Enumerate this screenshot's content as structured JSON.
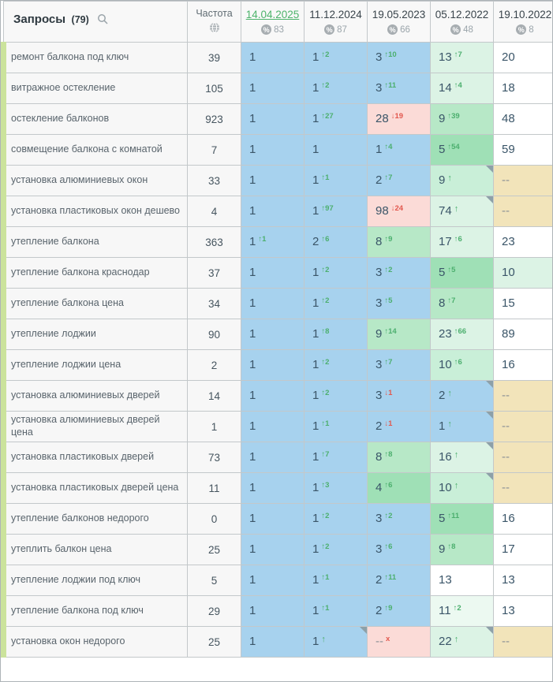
{
  "header": {
    "queries_label": "Запросы",
    "queries_count": "(79)",
    "frequency_label": "Частота",
    "columns": [
      {
        "date": "14.04.2025",
        "percent": "83",
        "active": true
      },
      {
        "date": "11.12.2024",
        "percent": "87",
        "active": false
      },
      {
        "date": "19.05.2023",
        "percent": "66",
        "active": false
      },
      {
        "date": "05.12.2022",
        "percent": "48",
        "active": false
      },
      {
        "date": "19.10.2022",
        "percent": "8",
        "active": false
      }
    ]
  },
  "icons": {
    "search": "magnifier",
    "frequency": "globe",
    "percent_badge": "percent-in-circle",
    "note_marker": "gray-corner-triangle"
  },
  "palette": {
    "blue": "#a7d2ee",
    "green1": "#9fe0b6",
    "green2": "#b7e8c7",
    "green3": "#c9efd8",
    "pale": "#dcf3e5",
    "verypale": "#ecf9f1",
    "pink": "#fbdbd7",
    "tan": "#f2e4ba",
    "white": "#ffffff",
    "up": "#4caf6e",
    "down": "#e2584e",
    "active_date": "#4db36b",
    "row_stripe": "#cbe39c"
  },
  "rows": [
    {
      "query": "ремонт балкона под ключ",
      "frequency": "39",
      "cells": [
        {
          "v": "1",
          "bg": "blue"
        },
        {
          "v": "1",
          "sup": "↑2",
          "supColor": "up",
          "bg": "blue"
        },
        {
          "v": "3",
          "sup": "↑10",
          "supColor": "up",
          "bg": "blue"
        },
        {
          "v": "13",
          "sup": "↑7",
          "supColor": "up",
          "bg": "pale"
        },
        {
          "v": "20",
          "bg": "white"
        }
      ]
    },
    {
      "query": "витражное остекление",
      "frequency": "105",
      "cells": [
        {
          "v": "1",
          "bg": "blue"
        },
        {
          "v": "1",
          "sup": "↑2",
          "supColor": "up",
          "bg": "blue"
        },
        {
          "v": "3",
          "sup": "↑11",
          "supColor": "up",
          "bg": "blue"
        },
        {
          "v": "14",
          "sup": "↑4",
          "supColor": "up",
          "bg": "pale"
        },
        {
          "v": "18",
          "bg": "white"
        }
      ]
    },
    {
      "query": "остекление балконов",
      "frequency": "923",
      "cells": [
        {
          "v": "1",
          "bg": "blue"
        },
        {
          "v": "1",
          "sup": "↑27",
          "supColor": "up",
          "bg": "blue"
        },
        {
          "v": "28",
          "sup": "↓19",
          "supColor": "down",
          "bg": "pink"
        },
        {
          "v": "9",
          "sup": "↑39",
          "supColor": "up",
          "bg": "green2"
        },
        {
          "v": "48",
          "bg": "white"
        }
      ]
    },
    {
      "query": "совмещение балкона с комнатой",
      "frequency": "7",
      "cells": [
        {
          "v": "1",
          "bg": "blue"
        },
        {
          "v": "1",
          "bg": "blue"
        },
        {
          "v": "1",
          "sup": "↑4",
          "supColor": "up",
          "bg": "blue"
        },
        {
          "v": "5",
          "sup": "↑54",
          "supColor": "up",
          "bg": "green1"
        },
        {
          "v": "59",
          "bg": "white"
        }
      ]
    },
    {
      "query": "установка алюминиевых окон",
      "frequency": "33",
      "cells": [
        {
          "v": "1",
          "bg": "blue"
        },
        {
          "v": "1",
          "sup": "↑1",
          "supColor": "up",
          "bg": "blue"
        },
        {
          "v": "2",
          "sup": "↑7",
          "supColor": "up",
          "bg": "blue"
        },
        {
          "v": "9",
          "sup": "↑",
          "supColor": "up",
          "bg": "green3",
          "corner": true
        },
        {
          "v": "--",
          "bg": "tan"
        }
      ]
    },
    {
      "query": "установка пластиковых окон дешево",
      "frequency": "4",
      "cells": [
        {
          "v": "1",
          "bg": "blue"
        },
        {
          "v": "1",
          "sup": "↑97",
          "supColor": "up",
          "bg": "blue"
        },
        {
          "v": "98",
          "sup": "↓24",
          "supColor": "down",
          "bg": "pink"
        },
        {
          "v": "74",
          "sup": "↑",
          "supColor": "up",
          "bg": "pale",
          "corner": true
        },
        {
          "v": "--",
          "bg": "tan"
        }
      ]
    },
    {
      "query": "утепление балкона",
      "frequency": "363",
      "cells": [
        {
          "v": "1",
          "sup": "↑1",
          "supColor": "up",
          "bg": "blue"
        },
        {
          "v": "2",
          "sup": "↑6",
          "supColor": "up",
          "bg": "blue"
        },
        {
          "v": "8",
          "sup": "↑9",
          "supColor": "up",
          "bg": "green2"
        },
        {
          "v": "17",
          "sup": "↑6",
          "supColor": "up",
          "bg": "pale"
        },
        {
          "v": "23",
          "bg": "white"
        }
      ]
    },
    {
      "query": "утепление балкона краснодар",
      "frequency": "37",
      "cells": [
        {
          "v": "1",
          "bg": "blue"
        },
        {
          "v": "1",
          "sup": "↑2",
          "supColor": "up",
          "bg": "blue"
        },
        {
          "v": "3",
          "sup": "↑2",
          "supColor": "up",
          "bg": "blue"
        },
        {
          "v": "5",
          "sup": "↑5",
          "supColor": "up",
          "bg": "green1"
        },
        {
          "v": "10",
          "bg": "pale"
        }
      ]
    },
    {
      "query": "утепление балкона цена",
      "frequency": "34",
      "cells": [
        {
          "v": "1",
          "bg": "blue"
        },
        {
          "v": "1",
          "sup": "↑2",
          "supColor": "up",
          "bg": "blue"
        },
        {
          "v": "3",
          "sup": "↑5",
          "supColor": "up",
          "bg": "blue"
        },
        {
          "v": "8",
          "sup": "↑7",
          "supColor": "up",
          "bg": "green2"
        },
        {
          "v": "15",
          "bg": "white"
        }
      ]
    },
    {
      "query": "утепление лоджии",
      "frequency": "90",
      "cells": [
        {
          "v": "1",
          "bg": "blue"
        },
        {
          "v": "1",
          "sup": "↑8",
          "supColor": "up",
          "bg": "blue"
        },
        {
          "v": "9",
          "sup": "↑14",
          "supColor": "up",
          "bg": "green2"
        },
        {
          "v": "23",
          "sup": "↑66",
          "supColor": "up",
          "bg": "pale"
        },
        {
          "v": "89",
          "bg": "white"
        }
      ]
    },
    {
      "query": "утепление лоджии цена",
      "frequency": "2",
      "cells": [
        {
          "v": "1",
          "bg": "blue"
        },
        {
          "v": "1",
          "sup": "↑2",
          "supColor": "up",
          "bg": "blue"
        },
        {
          "v": "3",
          "sup": "↑7",
          "supColor": "up",
          "bg": "blue"
        },
        {
          "v": "10",
          "sup": "↑6",
          "supColor": "up",
          "bg": "green3"
        },
        {
          "v": "16",
          "bg": "white"
        }
      ]
    },
    {
      "query": "установка алюминиевых дверей",
      "frequency": "14",
      "cells": [
        {
          "v": "1",
          "bg": "blue"
        },
        {
          "v": "1",
          "sup": "↑2",
          "supColor": "up",
          "bg": "blue"
        },
        {
          "v": "3",
          "sup": "↓1",
          "supColor": "down",
          "bg": "blue"
        },
        {
          "v": "2",
          "sup": "↑",
          "supColor": "up",
          "bg": "blue",
          "corner": true
        },
        {
          "v": "--",
          "bg": "tan"
        }
      ]
    },
    {
      "query": "установка алюминиевых дверей цена",
      "frequency": "1",
      "cells": [
        {
          "v": "1",
          "bg": "blue"
        },
        {
          "v": "1",
          "sup": "↑1",
          "supColor": "up",
          "bg": "blue"
        },
        {
          "v": "2",
          "sup": "↓1",
          "supColor": "down",
          "bg": "blue"
        },
        {
          "v": "1",
          "sup": "↑",
          "supColor": "up",
          "bg": "blue",
          "corner": true
        },
        {
          "v": "--",
          "bg": "tan"
        }
      ]
    },
    {
      "query": "установка пластиковых дверей",
      "frequency": "73",
      "cells": [
        {
          "v": "1",
          "bg": "blue"
        },
        {
          "v": "1",
          "sup": "↑7",
          "supColor": "up",
          "bg": "blue"
        },
        {
          "v": "8",
          "sup": "↑8",
          "supColor": "up",
          "bg": "green2"
        },
        {
          "v": "16",
          "sup": "↑",
          "supColor": "up",
          "bg": "pale",
          "corner": true
        },
        {
          "v": "--",
          "bg": "tan"
        }
      ]
    },
    {
      "query": "установка пластиковых дверей цена",
      "frequency": "11",
      "cells": [
        {
          "v": "1",
          "bg": "blue"
        },
        {
          "v": "1",
          "sup": "↑3",
          "supColor": "up",
          "bg": "blue"
        },
        {
          "v": "4",
          "sup": "↑6",
          "supColor": "up",
          "bg": "green1"
        },
        {
          "v": "10",
          "sup": "↑",
          "supColor": "up",
          "bg": "green3",
          "corner": true
        },
        {
          "v": "--",
          "bg": "tan"
        }
      ]
    },
    {
      "query": "утепление балконов недорого",
      "frequency": "0",
      "cells": [
        {
          "v": "1",
          "bg": "blue"
        },
        {
          "v": "1",
          "sup": "↑2",
          "supColor": "up",
          "bg": "blue"
        },
        {
          "v": "3",
          "sup": "↑2",
          "supColor": "up",
          "bg": "blue"
        },
        {
          "v": "5",
          "sup": "↑11",
          "supColor": "up",
          "bg": "green1"
        },
        {
          "v": "16",
          "bg": "white"
        }
      ]
    },
    {
      "query": "утеплить балкон цена",
      "frequency": "25",
      "cells": [
        {
          "v": "1",
          "bg": "blue"
        },
        {
          "v": "1",
          "sup": "↑2",
          "supColor": "up",
          "bg": "blue"
        },
        {
          "v": "3",
          "sup": "↑6",
          "supColor": "up",
          "bg": "blue"
        },
        {
          "v": "9",
          "sup": "↑8",
          "supColor": "up",
          "bg": "green2"
        },
        {
          "v": "17",
          "bg": "white"
        }
      ]
    },
    {
      "query": "утепление лоджии под ключ",
      "frequency": "5",
      "cells": [
        {
          "v": "1",
          "bg": "blue"
        },
        {
          "v": "1",
          "sup": "↑1",
          "supColor": "up",
          "bg": "blue"
        },
        {
          "v": "2",
          "sup": "↑11",
          "supColor": "up",
          "bg": "blue"
        },
        {
          "v": "13",
          "bg": "white"
        },
        {
          "v": "13",
          "bg": "white"
        }
      ]
    },
    {
      "query": "утепление балкона под ключ",
      "frequency": "29",
      "cells": [
        {
          "v": "1",
          "bg": "blue"
        },
        {
          "v": "1",
          "sup": "↑1",
          "supColor": "up",
          "bg": "blue"
        },
        {
          "v": "2",
          "sup": "↑9",
          "supColor": "up",
          "bg": "blue"
        },
        {
          "v": "11",
          "sup": "↑2",
          "supColor": "up",
          "bg": "verypale"
        },
        {
          "v": "13",
          "bg": "white"
        }
      ]
    },
    {
      "query": "установка окон недорого",
      "frequency": "25",
      "cells": [
        {
          "v": "1",
          "bg": "blue"
        },
        {
          "v": "1",
          "sup": "↑",
          "supColor": "up",
          "bg": "blue",
          "corner": true
        },
        {
          "v": "--",
          "sup": "x",
          "supColor": "down",
          "bg": "pink"
        },
        {
          "v": "22",
          "sup": "↑",
          "supColor": "up",
          "bg": "pale",
          "corner": true
        },
        {
          "v": "--",
          "bg": "tan"
        }
      ]
    }
  ]
}
